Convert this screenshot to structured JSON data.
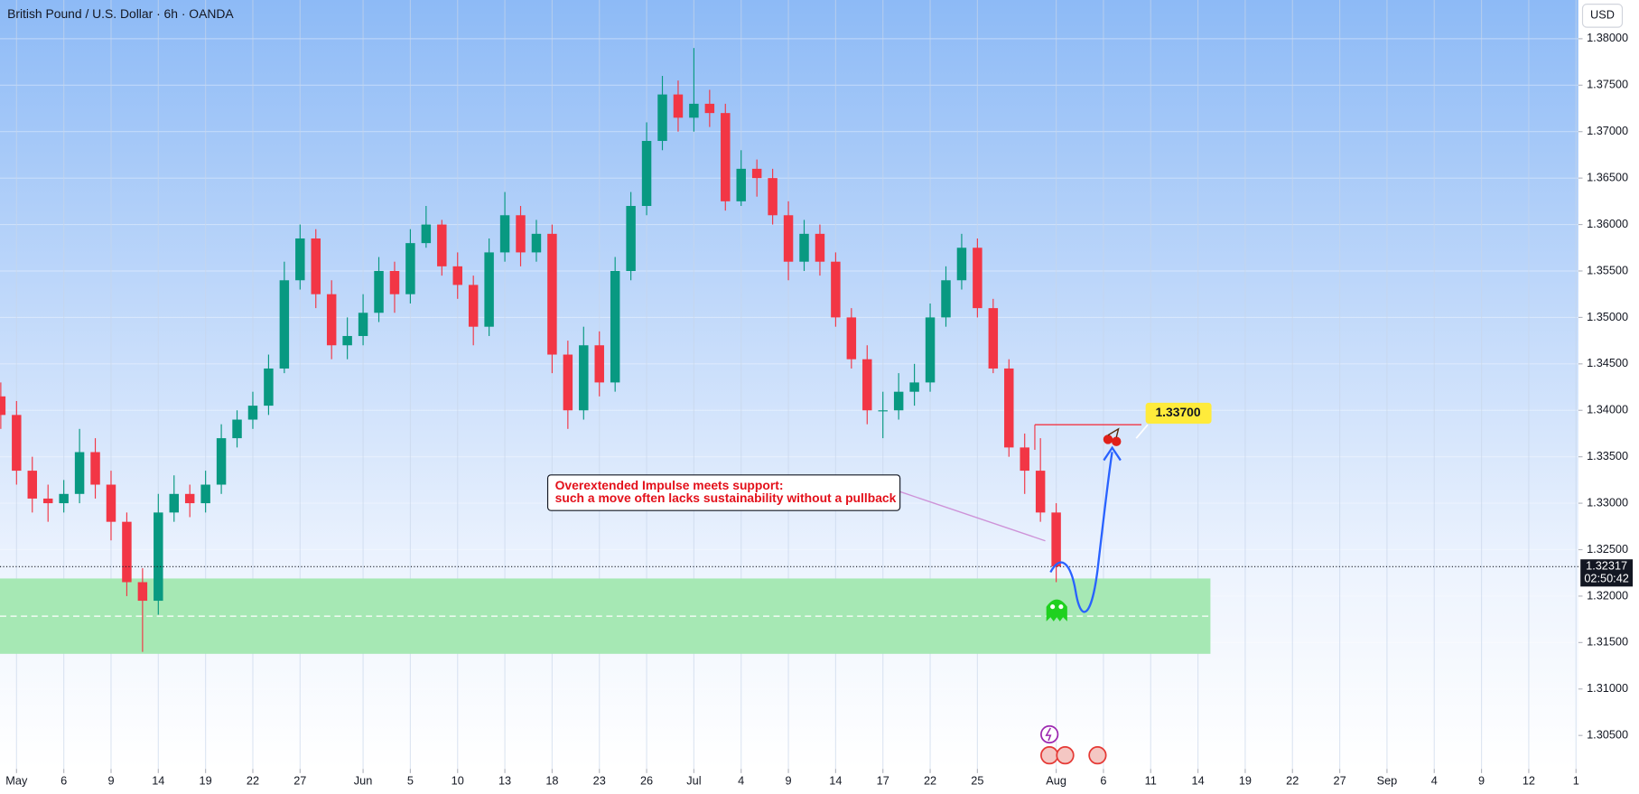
{
  "chart_data": {
    "type": "candlestick",
    "title": "British Pound / U.S. Dollar · 6h · OANDA",
    "currency_button": "USD",
    "x": [
      0,
      1,
      2,
      3,
      4,
      5,
      6,
      7,
      8,
      9,
      10,
      11,
      12,
      13,
      14,
      15,
      16,
      17,
      18,
      19,
      20,
      21,
      22,
      23,
      24,
      25,
      26,
      27,
      28,
      29,
      30,
      31,
      32,
      33,
      34,
      35,
      36,
      37,
      38,
      39,
      40,
      41,
      42,
      43,
      44,
      45,
      46,
      47,
      48,
      49,
      50,
      51,
      52,
      53,
      54,
      55,
      56,
      57,
      58,
      59,
      60,
      61,
      62,
      63,
      64,
      65,
      66,
      67
    ],
    "open": [
      1.3415,
      1.3395,
      1.3335,
      1.3305,
      1.33,
      1.331,
      1.3355,
      1.332,
      1.328,
      1.3215,
      1.3195,
      1.329,
      1.331,
      1.33,
      1.332,
      1.337,
      1.339,
      1.3405,
      1.3445,
      1.354,
      1.3585,
      1.3525,
      1.347,
      1.348,
      1.3505,
      1.355,
      1.3525,
      1.358,
      1.36,
      1.3555,
      1.3535,
      1.349,
      1.357,
      1.361,
      1.357,
      1.359,
      1.346,
      1.34,
      1.347,
      1.343,
      1.355,
      1.362,
      1.369,
      1.374,
      1.3715,
      1.373,
      1.372,
      1.3625,
      1.366,
      1.365,
      1.361,
      1.356,
      1.359,
      1.356,
      1.35,
      1.3455,
      1.34,
      1.34,
      1.342,
      1.343,
      1.35,
      1.354,
      1.3575,
      1.351,
      1.3445,
      1.336,
      1.3335,
      1.329
    ],
    "high": [
      1.343,
      1.341,
      1.335,
      1.332,
      1.3325,
      1.338,
      1.337,
      1.3335,
      1.329,
      1.323,
      1.331,
      1.333,
      1.332,
      1.3335,
      1.3385,
      1.34,
      1.342,
      1.346,
      1.356,
      1.36,
      1.3595,
      1.354,
      1.35,
      1.3525,
      1.3565,
      1.356,
      1.3595,
      1.362,
      1.3605,
      1.357,
      1.3545,
      1.3585,
      1.3635,
      1.362,
      1.3605,
      1.36,
      1.3475,
      1.349,
      1.3485,
      1.3565,
      1.3635,
      1.371,
      1.376,
      1.3755,
      1.379,
      1.3745,
      1.373,
      1.368,
      1.367,
      1.366,
      1.3625,
      1.3605,
      1.36,
      1.357,
      1.351,
      1.347,
      1.342,
      1.344,
      1.345,
      1.3515,
      1.3555,
      1.359,
      1.3585,
      1.352,
      1.3455,
      1.3375,
      1.337,
      1.33
    ],
    "low": [
      1.338,
      1.332,
      1.329,
      1.328,
      1.329,
      1.33,
      1.3305,
      1.326,
      1.32,
      1.314,
      1.318,
      1.328,
      1.3285,
      1.329,
      1.331,
      1.336,
      1.338,
      1.3395,
      1.344,
      1.353,
      1.351,
      1.3455,
      1.3455,
      1.347,
      1.3495,
      1.3505,
      1.3515,
      1.3575,
      1.3545,
      1.352,
      1.347,
      1.348,
      1.356,
      1.3555,
      1.356,
      1.344,
      1.338,
      1.339,
      1.3415,
      1.342,
      1.354,
      1.361,
      1.368,
      1.37,
      1.37,
      1.3705,
      1.3615,
      1.362,
      1.363,
      1.36,
      1.354,
      1.355,
      1.3545,
      1.349,
      1.3445,
      1.3385,
      1.337,
      1.339,
      1.3405,
      1.342,
      1.349,
      1.353,
      1.35,
      1.344,
      1.335,
      1.331,
      1.328,
      1.3215
    ],
    "close": [
      1.3395,
      1.3335,
      1.3305,
      1.33,
      1.331,
      1.3355,
      1.332,
      1.328,
      1.3215,
      1.3195,
      1.329,
      1.331,
      1.33,
      1.332,
      1.337,
      1.339,
      1.3405,
      1.3445,
      1.354,
      1.3585,
      1.3525,
      1.347,
      1.348,
      1.3505,
      1.355,
      1.3525,
      1.358,
      1.36,
      1.3555,
      1.3535,
      1.349,
      1.357,
      1.361,
      1.357,
      1.359,
      1.346,
      1.34,
      1.347,
      1.343,
      1.355,
      1.362,
      1.369,
      1.374,
      1.3715,
      1.373,
      1.372,
      1.3625,
      1.366,
      1.365,
      1.361,
      1.356,
      1.359,
      1.356,
      1.35,
      1.3455,
      1.34,
      1.34,
      1.342,
      1.343,
      1.35,
      1.354,
      1.3575,
      1.351,
      1.3445,
      1.336,
      1.3335,
      1.329,
      1.3232
    ],
    "up_color": "#089981",
    "down_color": "#f23645",
    "xlim": [
      -0.05,
      100.15
    ],
    "ylim": [
      1.3014,
      1.38417
    ],
    "yticks": [
      {
        "value": 1.38,
        "label": "1.38000"
      },
      {
        "value": 1.375,
        "label": "1.37500"
      },
      {
        "value": 1.37,
        "label": "1.37000"
      },
      {
        "value": 1.365,
        "label": "1.36500"
      },
      {
        "value": 1.36,
        "label": "1.36000"
      },
      {
        "value": 1.355,
        "label": "1.35500"
      },
      {
        "value": 1.35,
        "label": "1.35000"
      },
      {
        "value": 1.345,
        "label": "1.34500"
      },
      {
        "value": 1.34,
        "label": "1.34000"
      },
      {
        "value": 1.335,
        "label": "1.33500"
      },
      {
        "value": 1.33,
        "label": "1.33000"
      },
      {
        "value": 1.325,
        "label": "1.32500"
      },
      {
        "value": 1.32,
        "label": "1.32000"
      },
      {
        "value": 1.315,
        "label": "1.31500"
      },
      {
        "value": 1.31,
        "label": "1.31000"
      },
      {
        "value": 1.305,
        "label": "1.30500"
      }
    ],
    "xticks": [
      {
        "value": 1,
        "label": "May"
      },
      {
        "value": 4,
        "label": "6"
      },
      {
        "value": 7,
        "label": "9"
      },
      {
        "value": 10,
        "label": "14"
      },
      {
        "value": 13,
        "label": "19"
      },
      {
        "value": 16,
        "label": "22"
      },
      {
        "value": 19,
        "label": "27"
      },
      {
        "value": 23,
        "label": "Jun"
      },
      {
        "value": 26,
        "label": "5"
      },
      {
        "value": 29,
        "label": "10"
      },
      {
        "value": 32,
        "label": "13"
      },
      {
        "value": 35,
        "label": "18"
      },
      {
        "value": 38,
        "label": "23"
      },
      {
        "value": 41,
        "label": "26"
      },
      {
        "value": 44,
        "label": "Jul"
      },
      {
        "value": 47,
        "label": "4"
      },
      {
        "value": 50,
        "label": "9"
      },
      {
        "value": 53,
        "label": "14"
      },
      {
        "value": 56,
        "label": "17"
      },
      {
        "value": 59,
        "label": "22"
      },
      {
        "value": 62,
        "label": "25"
      },
      {
        "value": 67,
        "label": "Aug"
      },
      {
        "value": 70,
        "label": "6"
      },
      {
        "value": 73,
        "label": "11"
      },
      {
        "value": 76,
        "label": "14"
      },
      {
        "value": 79,
        "label": "19"
      },
      {
        "value": 82,
        "label": "22"
      },
      {
        "value": 85,
        "label": "27"
      },
      {
        "value": 88,
        "label": "Sep"
      },
      {
        "value": 91,
        "label": "4"
      },
      {
        "value": 94,
        "label": "9"
      },
      {
        "value": 97,
        "label": "12"
      },
      {
        "value": 100,
        "label": "1"
      }
    ],
    "grid": true,
    "current_price": {
      "value": 1.32317,
      "label": "1.32317",
      "countdown": "02:50:42"
    },
    "annotation": [
      "Overextended Impulse meets support:",
      "such a move often lacks sustainability without a pullback"
    ],
    "target_label": "1.33700"
  }
}
